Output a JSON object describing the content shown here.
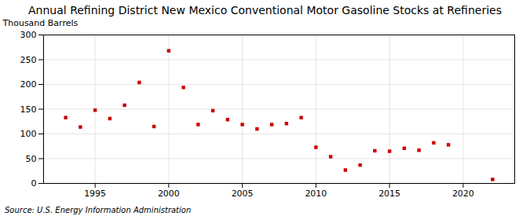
{
  "chart_data": {
    "type": "scatter",
    "title": "Annual Refining District New Mexico Conventional Motor Gasoline Stocks at Refineries",
    "ylabel": "Thousand Barrels",
    "source": "Source: U.S. Energy Information Administration",
    "x": [
      1993,
      1994,
      1995,
      1996,
      1997,
      1998,
      1999,
      2000,
      2001,
      2002,
      2003,
      2004,
      2005,
      2006,
      2007,
      2008,
      2009,
      2010,
      2011,
      2012,
      2013,
      2014,
      2015,
      2016,
      2017,
      2018,
      2019,
      2022
    ],
    "values": [
      133,
      114,
      148,
      131,
      158,
      204,
      115,
      268,
      194,
      119,
      147,
      129,
      119,
      110,
      119,
      121,
      133,
      73,
      54,
      27,
      37,
      66,
      65,
      71,
      67,
      82,
      78,
      8
    ],
    "color": "#cc0000",
    "marker": "square",
    "xlim": [
      1991.5,
      2023.5
    ],
    "xticks": [
      1995,
      2000,
      2005,
      2010,
      2015,
      2020
    ],
    "ylim": [
      0,
      300
    ],
    "yticks": [
      0,
      50,
      100,
      150,
      200,
      250,
      300
    ],
    "grid": true
  }
}
